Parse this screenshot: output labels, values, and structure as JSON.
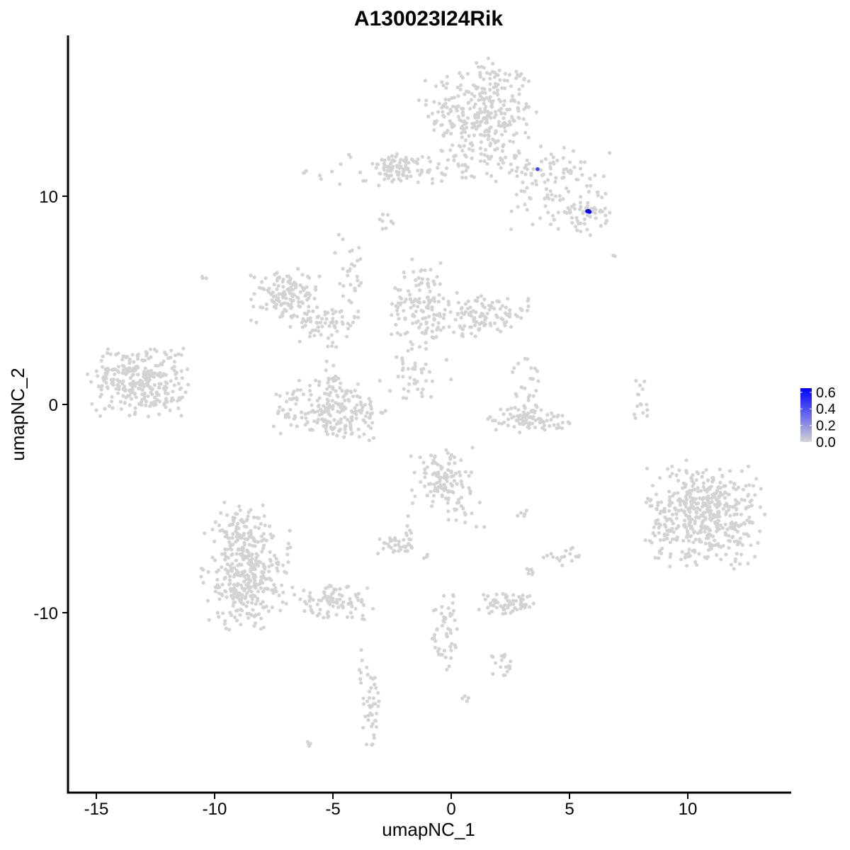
{
  "chart_data": {
    "type": "scatter",
    "title": "A130023I24Rik",
    "xlabel": "umapNC_1",
    "ylabel": "umapNC_2",
    "xlim": [
      -16.5,
      14.3
    ],
    "ylim": [
      -18.8,
      17.7
    ],
    "x_ticks": [
      -15,
      -10,
      -5,
      0,
      5,
      10
    ],
    "x_tick_labels": [
      "-15",
      "-10",
      "-5",
      "0",
      "5",
      "10"
    ],
    "y_ticks": [
      -10,
      0,
      10
    ],
    "y_tick_labels": [
      "-10",
      "0",
      "10"
    ],
    "grid": false,
    "legend": {
      "position": "right",
      "type": "colorbar",
      "min": 0.0,
      "max": 0.65,
      "low_color": "#d3d3d3",
      "high_color": "#0000ff",
      "breaks": [
        0.0,
        0.2,
        0.4,
        0.6
      ],
      "break_labels": [
        "0.0",
        "0.2",
        "0.4",
        "0.6"
      ]
    },
    "point_color": "#d3d3d3",
    "clusters": [
      {
        "cx": 1.3,
        "cy": 14.0,
        "sx": 1.1,
        "sy": 1.3,
        "n": 320
      },
      {
        "cx": 0.5,
        "cy": 11.3,
        "sx": 3.2,
        "sy": 0.4,
        "n": 120
      },
      {
        "cx": -2.3,
        "cy": 11.3,
        "sx": 0.5,
        "sy": 0.3,
        "n": 60
      },
      {
        "cx": 4.2,
        "cy": 10.3,
        "sx": 0.8,
        "sy": 1.0,
        "n": 70
      },
      {
        "cx": 5.8,
        "cy": 9.3,
        "sx": 0.5,
        "sy": 0.6,
        "n": 50
      },
      {
        "cx": -2.8,
        "cy": 8.9,
        "sx": 0.2,
        "sy": 0.2,
        "n": 8
      },
      {
        "cx": -7.0,
        "cy": 5.2,
        "sx": 0.7,
        "sy": 0.6,
        "n": 130
      },
      {
        "cx": -5.3,
        "cy": 3.9,
        "sx": 0.7,
        "sy": 0.4,
        "n": 60
      },
      {
        "cx": -4.3,
        "cy": 6.2,
        "sx": 0.4,
        "sy": 1.1,
        "n": 30
      },
      {
        "cx": -5.0,
        "cy": -0.3,
        "sx": 1.2,
        "sy": 0.7,
        "n": 220
      },
      {
        "cx": -5.0,
        "cy": 1.8,
        "sx": 0.2,
        "sy": 0.9,
        "n": 20
      },
      {
        "cx": -1.3,
        "cy": 4.8,
        "sx": 0.6,
        "sy": 1.0,
        "n": 120
      },
      {
        "cx": 1.3,
        "cy": 4.3,
        "sx": 1.0,
        "sy": 0.5,
        "n": 120
      },
      {
        "cx": -1.8,
        "cy": 1.7,
        "sx": 0.4,
        "sy": 0.9,
        "n": 30
      },
      {
        "cx": -1.2,
        "cy": 1.3,
        "sx": 0.6,
        "sy": 0.6,
        "n": 12
      },
      {
        "cx": -13.4,
        "cy": 1.2,
        "sx": 0.9,
        "sy": 0.8,
        "n": 240
      },
      {
        "cx": -12.3,
        "cy": 0.6,
        "sx": 0.7,
        "sy": 0.6,
        "n": 60
      },
      {
        "cx": -11.9,
        "cy": 2.4,
        "sx": 0.3,
        "sy": 0.3,
        "n": 10
      },
      {
        "cx": 3.3,
        "cy": -0.7,
        "sx": 0.8,
        "sy": 0.3,
        "n": 90
      },
      {
        "cx": 3.2,
        "cy": 0.8,
        "sx": 0.3,
        "sy": 0.8,
        "n": 30
      },
      {
        "cx": 8.0,
        "cy": 0.3,
        "sx": 0.2,
        "sy": 0.5,
        "n": 15
      },
      {
        "cx": 10.7,
        "cy": -5.3,
        "sx": 1.2,
        "sy": 1.2,
        "n": 480
      },
      {
        "cx": -0.4,
        "cy": -3.6,
        "sx": 0.6,
        "sy": 0.7,
        "n": 110
      },
      {
        "cx": 0.5,
        "cy": -5.0,
        "sx": 0.5,
        "sy": 0.5,
        "n": 20
      },
      {
        "cx": -8.6,
        "cy": -8.3,
        "sx": 0.9,
        "sy": 1.2,
        "n": 330
      },
      {
        "cx": -9.0,
        "cy": -6.0,
        "sx": 0.5,
        "sy": 0.6,
        "n": 70
      },
      {
        "cx": -5.0,
        "cy": -9.5,
        "sx": 0.8,
        "sy": 0.4,
        "n": 90
      },
      {
        "cx": -2.3,
        "cy": -6.8,
        "sx": 0.4,
        "sy": 0.2,
        "n": 35
      },
      {
        "cx": -1.8,
        "cy": -6.0,
        "sx": 0.2,
        "sy": 0.3,
        "n": 6
      },
      {
        "cx": 2.4,
        "cy": -9.6,
        "sx": 0.6,
        "sy": 0.25,
        "n": 60
      },
      {
        "cx": 5.0,
        "cy": -7.3,
        "sx": 0.3,
        "sy": 0.2,
        "n": 12
      },
      {
        "cx": 3.3,
        "cy": -8.0,
        "sx": 0.1,
        "sy": 0.2,
        "n": 6
      },
      {
        "cx": -0.2,
        "cy": -11.0,
        "sx": 0.3,
        "sy": 1.0,
        "n": 50
      },
      {
        "cx": 2.3,
        "cy": -12.5,
        "sx": 0.3,
        "sy": 0.3,
        "n": 18
      },
      {
        "cx": -3.4,
        "cy": -14.5,
        "sx": 0.2,
        "sy": 0.9,
        "n": 40
      },
      {
        "cx": -3.8,
        "cy": -12.5,
        "sx": 0.1,
        "sy": 0.5,
        "n": 6
      },
      {
        "cx": -6.0,
        "cy": -16.3,
        "sx": 0.1,
        "sy": 0.1,
        "n": 4
      },
      {
        "cx": 0.6,
        "cy": -14.1,
        "sx": 0.1,
        "sy": 0.1,
        "n": 4
      },
      {
        "cx": 3.0,
        "cy": -5.2,
        "sx": 0.2,
        "sy": 0.1,
        "n": 5
      },
      {
        "cx": -10.5,
        "cy": 6.0,
        "sx": 0.1,
        "sy": 0.1,
        "n": 3
      },
      {
        "cx": 6.8,
        "cy": 7.1,
        "sx": 0.1,
        "sy": 0.1,
        "n": 2
      },
      {
        "cx": 4.2,
        "cy": -7.3,
        "sx": 0.2,
        "sy": 0.1,
        "n": 5
      },
      {
        "cx": -1.1,
        "cy": -7.3,
        "sx": 0.1,
        "sy": 0.1,
        "n": 4
      }
    ],
    "highlighted_points": [
      {
        "x": 3.65,
        "y": 11.3,
        "value": 0.45
      },
      {
        "x": 5.75,
        "y": 9.28,
        "value": 0.65
      },
      {
        "x": 5.85,
        "y": 9.25,
        "value": 0.65
      },
      {
        "x": 5.8,
        "y": 9.3,
        "value": 0.62
      }
    ]
  }
}
